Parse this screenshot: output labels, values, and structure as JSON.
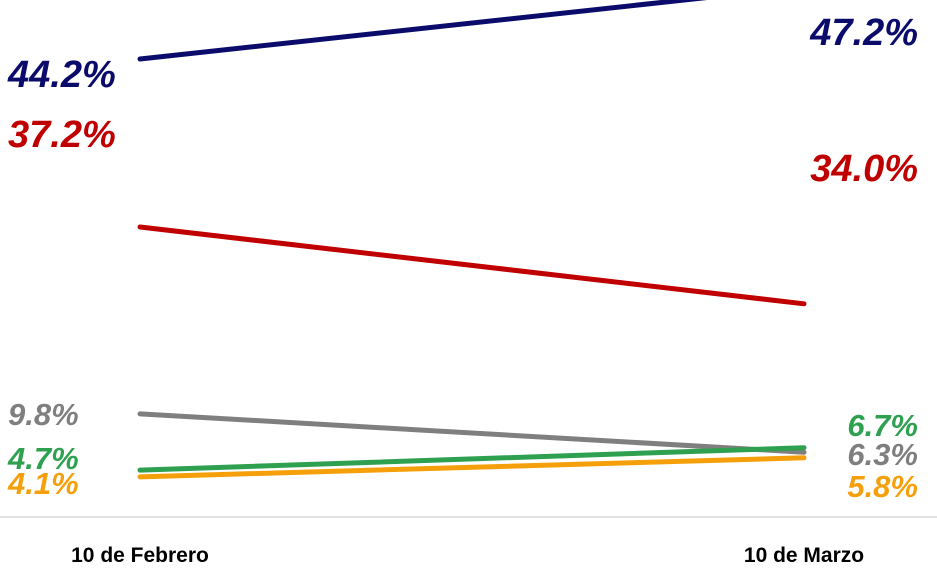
{
  "chart_data": {
    "type": "line",
    "title": "",
    "xlabel": "",
    "ylabel": "",
    "categories": [
      "10 de Febrero",
      "10 de Marzo"
    ],
    "ylim": [
      0,
      50
    ],
    "grid": false,
    "series": [
      {
        "color": "#0b0b6b",
        "values": [
          44.2,
          47.2
        ],
        "labels": [
          "44.2%",
          "47.2%"
        ]
      },
      {
        "color": "#c00000",
        "values": [
          37.2,
          34.0
        ],
        "labels": [
          "37.2%",
          "34.0%"
        ]
      },
      {
        "color": "#7f7f7f",
        "values": [
          9.8,
          6.3
        ],
        "labels": [
          "9.8%",
          "6.3%"
        ]
      },
      {
        "color": "#2ea04f",
        "values": [
          4.7,
          6.7
        ],
        "labels": [
          "4.7%",
          "6.7%"
        ]
      },
      {
        "color": "#f5a00a",
        "values": [
          4.1,
          5.8
        ],
        "labels": [
          "4.1%",
          "5.8%"
        ]
      }
    ]
  }
}
